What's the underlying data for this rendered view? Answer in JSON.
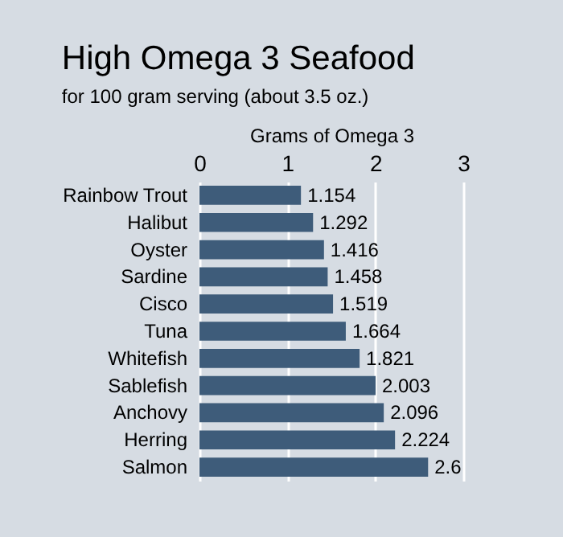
{
  "chart_data": {
    "type": "bar",
    "orientation": "horizontal",
    "title": "High Omega 3 Seafood",
    "subtitle": "for 100 gram serving (about 3.5 oz.)",
    "xlabel": "Grams of Omega 3",
    "categories": [
      "Rainbow Trout",
      "Halibut",
      "Oyster",
      "Sardine",
      "Cisco",
      "Tuna",
      "Whitefish",
      "Sablefish",
      "Anchovy",
      "Herring",
      "Salmon"
    ],
    "values": [
      1.154,
      1.292,
      1.416,
      1.458,
      1.519,
      1.664,
      1.821,
      2.003,
      2.096,
      2.224,
      2.6
    ],
    "color": "#3e5c7a",
    "xlim": [
      0,
      3
    ],
    "xticks": [
      0,
      1,
      2,
      3
    ],
    "grid": "x",
    "data_labels": true
  }
}
